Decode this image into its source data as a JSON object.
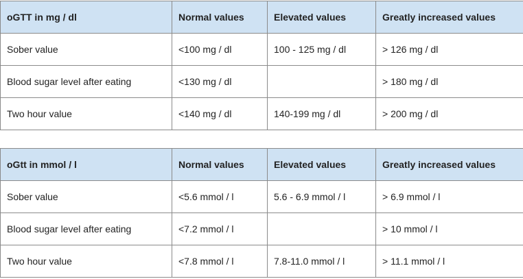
{
  "tables": [
    {
      "headers": [
        "oGTT in mg / dl",
        "Normal values",
        "Elevated values",
        "Greatly increased values"
      ],
      "rows": [
        [
          "Sober value",
          "<100 mg / dl",
          "100 - 125 mg / dl",
          "> 126 mg / dl"
        ],
        [
          "Blood sugar level after eating",
          "<130 mg / dl",
          "",
          "> 180 mg / dl"
        ],
        [
          "Two hour value",
          "<140 mg / dl",
          "140-199 mg / dl",
          "> 200 mg / dl"
        ]
      ]
    },
    {
      "headers": [
        "oGtt in mmol / l",
        "Normal values",
        "Elevated values",
        "Greatly increased values"
      ],
      "rows": [
        [
          "Sober value",
          "<5.6 mmol / l",
          "5.6 - 6.9 mmol / l",
          "> 6.9 mmol / l"
        ],
        [
          "Blood sugar level after eating",
          "<7.2 mmol / l",
          "",
          "> 10 mmol / l"
        ],
        [
          "Two hour value",
          "<7.8 mmol / l",
          "7.8-11.0 mmol / l",
          "> 11.1 mmol / l"
        ]
      ]
    }
  ]
}
